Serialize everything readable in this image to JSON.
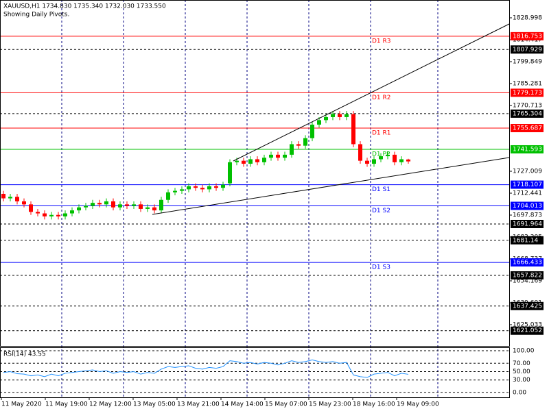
{
  "chart_data": {
    "type": "candlestick",
    "header": "XAUUSD,H1  1734.830 1735.340 1732.030 1733.550",
    "subtitle": "Showing Daily Pivots.",
    "up_color": "#00c000",
    "down_color": "#ff0000",
    "open": [
      1712,
      1709,
      1710,
      1707,
      1705,
      1700,
      1699,
      1697,
      1698,
      1697,
      1699,
      1701,
      1703,
      1704,
      1706,
      1705,
      1707,
      1703,
      1705,
      1704,
      1705,
      1702,
      1703,
      1701,
      1708,
      1713,
      1714,
      1715,
      1717,
      1716,
      1715,
      1717,
      1716,
      1719,
      1733,
      1734,
      1732,
      1735,
      1733,
      1736,
      1738,
      1736,
      1738,
      1745,
      1744,
      1749,
      1758,
      1761,
      1763,
      1765,
      1763,
      1765,
      1745,
      1734,
      1732,
      1735,
      1737,
      1738,
      1733,
      1734.83
    ],
    "high": [
      1714,
      1712,
      1712,
      1709,
      1707,
      1702,
      1701,
      1700,
      1700,
      1701,
      1703,
      1705,
      1706,
      1708,
      1708,
      1709,
      1709,
      1707,
      1707,
      1707,
      1707,
      1705,
      1705,
      1710,
      1715,
      1716,
      1717,
      1719,
      1719,
      1718,
      1719,
      1719,
      1720,
      1735,
      1736,
      1736,
      1737,
      1737,
      1738,
      1740,
      1740,
      1740,
      1747,
      1747,
      1751,
      1760,
      1763,
      1765,
      1767,
      1767,
      1767,
      1767,
      1747,
      1736,
      1737,
      1739,
      1740,
      1740,
      1737,
      1735.34
    ],
    "low": [
      1707,
      1707,
      1705,
      1703,
      1698,
      1697,
      1695,
      1695,
      1695,
      1695,
      1697,
      1699,
      1701,
      1702,
      1703,
      1703,
      1701,
      1701,
      1702,
      1702,
      1700,
      1700,
      1699,
      1699,
      1706,
      1711,
      1712,
      1713,
      1714,
      1713,
      1713,
      1714,
      1714,
      1717,
      1731,
      1730,
      1730,
      1731,
      1731,
      1734,
      1734,
      1734,
      1736,
      1742,
      1742,
      1747,
      1756,
      1759,
      1761,
      1761,
      1761,
      1743,
      1732,
      1730,
      1730,
      1733,
      1735,
      1731,
      1731,
      1732.03
    ],
    "close": [
      1709,
      1710,
      1707,
      1705,
      1700,
      1699,
      1697,
      1698,
      1697,
      1699,
      1701,
      1703,
      1704,
      1706,
      1705,
      1707,
      1703,
      1705,
      1704,
      1705,
      1702,
      1703,
      1701,
      1708,
      1713,
      1714,
      1715,
      1717,
      1716,
      1715,
      1717,
      1716,
      1718,
      1733,
      1734,
      1732,
      1735,
      1733,
      1736,
      1738,
      1736,
      1738,
      1745,
      1744,
      1749,
      1758,
      1761,
      1763,
      1765,
      1763,
      1765,
      1745,
      1734,
      1732,
      1735,
      1737,
      1738,
      1733,
      1735,
      1733.55
    ],
    "ylim": [
      1610.92,
      1840.83
    ],
    "yticks": [
      1828.998,
      1814.417,
      1799.849,
      1785.281,
      1770.713,
      1727.009,
      1712.441,
      1697.873,
      1683.305,
      1668.737,
      1654.169,
      1639.601,
      1625.033
    ],
    "pivots": [
      {
        "name": "D1 R3",
        "value": 1816.753,
        "color": "#ff0000"
      },
      {
        "name": "D1 R2",
        "value": 1779.173,
        "color": "#ff0000"
      },
      {
        "name": "D1 R1",
        "value": 1755.687,
        "color": "#ff0000"
      },
      {
        "name": "D1 PP",
        "value": 1741.593,
        "color": "#00c000"
      },
      {
        "name": "D1 S1",
        "value": 1718.107,
        "color": "#0000ff"
      },
      {
        "name": "D1 S2",
        "value": 1704.013,
        "color": "#0000ff"
      },
      {
        "name": "D1 S3",
        "value": 1666.433,
        "color": "#0000ff"
      }
    ],
    "levels": [
      1807.929,
      1765.304,
      1691.964,
      1681.14,
      1657.822,
      1637.425,
      1621.052
    ],
    "time_labels": [
      "11 May 2020",
      "11 May 19:00",
      "12 May 12:00",
      "13 May 05:00",
      "13 May 21:00",
      "14 May 14:00",
      "15 May 07:00",
      "15 May 23:00",
      "18 May 16:00",
      "19 May 09:00"
    ],
    "rsi": {
      "label": "RSI(14) 43.55",
      "color": "#1e90ff",
      "values": [
        48,
        50,
        45,
        44,
        40,
        42,
        38,
        44,
        40,
        46,
        48,
        50,
        52,
        54,
        50,
        52,
        46,
        50,
        48,
        50,
        44,
        48,
        46,
        56,
        62,
        60,
        62,
        64,
        58,
        56,
        60,
        58,
        62,
        76,
        74,
        70,
        72,
        68,
        72,
        70,
        66,
        70,
        76,
        72,
        74,
        78,
        74,
        72,
        74,
        70,
        72,
        42,
        38,
        36,
        44,
        46,
        48,
        40,
        46,
        43.55
      ],
      "ylim": [
        0,
        100
      ],
      "yticks": [
        {
          "value": 100,
          "label": "100.00"
        },
        {
          "value": 70,
          "label": "70.00"
        },
        {
          "value": 50,
          "label": "50.00"
        },
        {
          "value": 30,
          "label": "30.00"
        },
        {
          "value": 0,
          "label": "0.00"
        }
      ]
    }
  }
}
